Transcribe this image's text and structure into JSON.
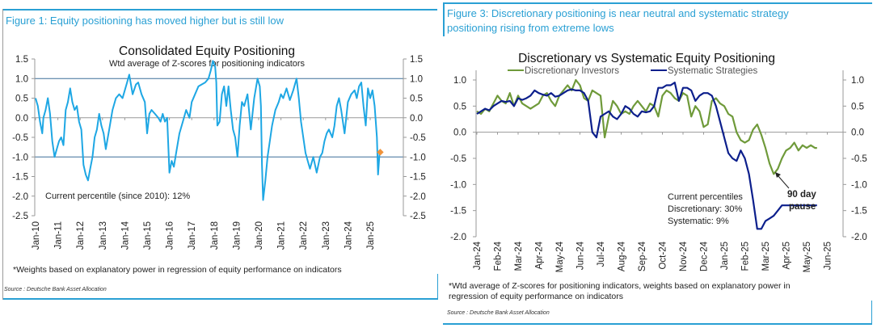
{
  "figure1": {
    "caption": "Figure 1: Equity positioning has moved higher but is still low",
    "footnote": "*Weights based on explanatory power in regression of equity performance on indicators",
    "source": "Source : Deutsche Bank Asset Allocation"
  },
  "figure3": {
    "caption_line1": "Figure 3: Discretionary positioning is near neutral and systematic strategy",
    "caption_line2": "positioning rising from extreme lows",
    "footnote_line1": "*Wtd average of Z-scores for positioning indicators, weights based on explanatory power in",
    "footnote_line2": "regression of equity performance on indicators",
    "source": "Source : Deutsche Bank Asset Allocation"
  },
  "chart_data": [
    {
      "type": "line",
      "title": "Consolidated Equity Positioning",
      "subtitle": "Wtd average of Z-scores for positioning indicators",
      "xlabel": "",
      "ylabel": "",
      "ylim": [
        -2.5,
        1.5
      ],
      "yticks": [
        "1.5",
        "1.0",
        "0.5",
        "0.0",
        "-0.5",
        "-1.0",
        "-1.5",
        "-2.0",
        "-2.5"
      ],
      "ytick_values": [
        1.5,
        1.0,
        0.5,
        0.0,
        -0.5,
        -1.0,
        -1.5,
        -2.0,
        -2.5
      ],
      "xticks": [
        "Jan-10",
        "Jan-11",
        "Jan-12",
        "Jan-13",
        "Jan-14",
        "Jan-15",
        "Jan-16",
        "Jan-17",
        "Jan-18",
        "Jan-19",
        "Jan-20",
        "Jan-21",
        "Jan-22",
        "Jan-23",
        "Jan-24",
        "Jan-25"
      ],
      "xlim": [
        2010.0,
        2025.8
      ],
      "reference_lines": [
        1.0,
        -1.0
      ],
      "annotation": "Current percentile (since 2010): 12%",
      "series": [
        {
          "name": "Consolidated Equity Positioning",
          "color": "#1ea7e4",
          "x": [
            2010.0,
            2010.1,
            2010.2,
            2010.3,
            2010.35,
            2010.45,
            2010.55,
            2010.65,
            2010.75,
            2010.85,
            2010.95,
            2011.05,
            2011.15,
            2011.25,
            2011.35,
            2011.45,
            2011.55,
            2011.65,
            2011.75,
            2011.85,
            2011.95,
            2012.05,
            2012.15,
            2012.25,
            2012.35,
            2012.45,
            2012.55,
            2012.65,
            2012.75,
            2012.85,
            2012.95,
            2013.05,
            2013.15,
            2013.3,
            2013.45,
            2013.6,
            2013.75,
            2013.9,
            2014.0,
            2014.1,
            2014.2,
            2014.35,
            2014.5,
            2014.6,
            2014.75,
            2014.9,
            2015.0,
            2015.1,
            2015.2,
            2015.35,
            2015.5,
            2015.6,
            2015.7,
            2015.8,
            2015.9,
            2016.0,
            2016.1,
            2016.2,
            2016.3,
            2016.45,
            2016.6,
            2016.75,
            2016.9,
            2017.0,
            2017.15,
            2017.3,
            2017.45,
            2017.6,
            2017.75,
            2017.85,
            2017.95,
            2018.05,
            2018.1,
            2018.15,
            2018.25,
            2018.35,
            2018.45,
            2018.55,
            2018.65,
            2018.75,
            2018.85,
            2018.95,
            2019.05,
            2019.15,
            2019.25,
            2019.35,
            2019.5,
            2019.65,
            2019.8,
            2019.95,
            2020.05,
            2020.1,
            2020.15,
            2020.2,
            2020.3,
            2020.4,
            2020.5,
            2020.6,
            2020.75,
            2020.9,
            2021.0,
            2021.1,
            2021.25,
            2021.4,
            2021.55,
            2021.7,
            2021.8,
            2021.9,
            2022.0,
            2022.1,
            2022.2,
            2022.3,
            2022.45,
            2022.6,
            2022.75,
            2022.85,
            2022.95,
            2023.05,
            2023.15,
            2023.3,
            2023.4,
            2023.5,
            2023.6,
            2023.7,
            2023.85,
            2024.0,
            2024.15,
            2024.3,
            2024.4,
            2024.5,
            2024.6,
            2024.7,
            2024.8,
            2024.9,
            2025.0,
            2025.1,
            2025.2,
            2025.3,
            2025.35,
            2025.42
          ],
          "y": [
            0.5,
            0.3,
            -0.1,
            -0.4,
            0.0,
            0.2,
            0.5,
            0.1,
            -0.6,
            -1.0,
            -0.8,
            -0.6,
            -0.5,
            -0.7,
            0.2,
            0.4,
            0.75,
            0.4,
            0.2,
            0.3,
            -0.1,
            -0.3,
            -1.2,
            -1.45,
            -1.6,
            -1.3,
            -1.0,
            -0.5,
            -0.3,
            0.1,
            -0.2,
            -0.4,
            -0.8,
            -0.3,
            0.2,
            0.5,
            0.6,
            0.5,
            0.7,
            0.9,
            1.1,
            0.6,
            0.85,
            0.9,
            0.6,
            0.4,
            -0.4,
            0.1,
            0.2,
            0.1,
            0.0,
            -0.1,
            0.1,
            -0.1,
            0.0,
            -1.4,
            -1.1,
            -1.25,
            -0.9,
            -0.4,
            -0.1,
            0.2,
            0.0,
            0.4,
            0.6,
            0.8,
            0.85,
            0.9,
            1.0,
            1.2,
            1.45,
            1.3,
            0.9,
            -0.2,
            -0.1,
            0.6,
            0.8,
            0.3,
            0.8,
            0.2,
            -0.3,
            -0.5,
            -1.0,
            -0.2,
            0.4,
            0.3,
            0.6,
            -0.3,
            0.5,
            1.0,
            0.8,
            0.3,
            -1.2,
            -2.1,
            -1.6,
            -1.0,
            -0.6,
            -0.2,
            0.2,
            0.4,
            0.6,
            0.5,
            0.75,
            0.45,
            0.7,
            1.0,
            0.5,
            -0.1,
            -0.5,
            -0.9,
            -1.1,
            -1.3,
            -1.0,
            -1.4,
            -1.0,
            -0.9,
            -0.6,
            -0.4,
            -0.3,
            -0.5,
            -0.2,
            0.3,
            0.5,
            0.2,
            -0.4,
            0.4,
            0.6,
            0.7,
            0.5,
            0.8,
            0.9,
            0.3,
            -0.2,
            0.75,
            0.5,
            0.7,
            0.3,
            -0.5,
            -1.45,
            -0.9
          ]
        }
      ],
      "marker": {
        "name": "current",
        "x": 2025.45,
        "y": -0.88,
        "color": "#f0923a"
      }
    },
    {
      "type": "line",
      "title": "Discretionary  vs Systematic Equity Positioning",
      "xlabel": "",
      "ylabel": "",
      "ylim": [
        -2.0,
        1.0
      ],
      "yticks": [
        "1.0",
        "0.5",
        "0.0",
        "-0.5",
        "-1.0",
        "-1.5",
        "-2.0"
      ],
      "ytick_values": [
        1.0,
        0.5,
        0.0,
        -0.5,
        -1.0,
        -1.5,
        -2.0
      ],
      "xticks": [
        "Jan-24",
        "Feb-24",
        "Mar-24",
        "Apr-24",
        "May-24",
        "Jun-24",
        "Jul-24",
        "Aug-24",
        "Sep-24",
        "Oct-24",
        "Nov-24",
        "Dec-24",
        "Jan-25",
        "Feb-25",
        "Mar-25",
        "Apr-25",
        "May-25",
        "Jun-25"
      ],
      "xlim": [
        0,
        17.8
      ],
      "legend": "top",
      "annotation": "Current percentiles\nDiscretionary: 30%\nSystematic: 9%",
      "annotation_lines": [
        "Current percentiles",
        "Discretionary: 30%",
        "Systematic: 9%"
      ],
      "arrow_label_lines": [
        "90 day",
        "pause"
      ],
      "series": [
        {
          "name": "Discretionary Investors",
          "color": "#6f9a3a",
          "x": [
            0,
            0.2,
            0.4,
            0.6,
            0.8,
            1.0,
            1.2,
            1.4,
            1.6,
            1.8,
            2.0,
            2.2,
            2.4,
            2.6,
            2.8,
            3.0,
            3.2,
            3.4,
            3.6,
            3.8,
            4.0,
            4.2,
            4.4,
            4.6,
            4.8,
            5.0,
            5.2,
            5.4,
            5.6,
            5.8,
            6.0,
            6.2,
            6.4,
            6.6,
            6.8,
            7.0,
            7.2,
            7.4,
            7.6,
            7.8,
            8.0,
            8.2,
            8.4,
            8.6,
            8.8,
            9.0,
            9.2,
            9.4,
            9.6,
            9.8,
            10.0,
            10.2,
            10.4,
            10.6,
            10.8,
            11.0,
            11.2,
            11.4,
            11.6,
            11.8,
            12.0,
            12.2,
            12.4,
            12.6,
            12.8,
            13.0,
            13.2,
            13.4,
            13.6,
            13.8,
            14.0,
            14.2,
            14.4,
            14.6,
            14.8,
            15.0,
            15.2,
            15.4,
            15.6,
            15.8,
            16.0,
            16.2,
            16.4,
            16.5
          ],
          "y": [
            0.4,
            0.35,
            0.45,
            0.4,
            0.55,
            0.7,
            0.6,
            0.55,
            0.75,
            0.5,
            0.7,
            0.55,
            0.5,
            0.45,
            0.5,
            0.55,
            0.7,
            0.75,
            0.6,
            0.5,
            0.7,
            0.8,
            0.9,
            0.8,
            1.0,
            0.9,
            0.65,
            0.6,
            0.8,
            0.75,
            0.7,
            -0.1,
            0.3,
            0.6,
            0.5,
            0.35,
            0.4,
            0.35,
            0.5,
            0.6,
            0.5,
            0.4,
            0.55,
            0.5,
            0.3,
            0.7,
            0.8,
            0.75,
            0.65,
            0.6,
            0.75,
            0.7,
            0.3,
            0.5,
            0.4,
            0.1,
            0.15,
            0.6,
            0.65,
            0.55,
            0.5,
            0.35,
            0.3,
            0.0,
            -0.15,
            -0.2,
            -0.15,
            0.05,
            0.15,
            -0.05,
            -0.3,
            -0.6,
            -0.8,
            -0.7,
            -0.5,
            -0.35,
            -0.3,
            -0.2,
            -0.35,
            -0.25,
            -0.3,
            -0.25,
            -0.3,
            -0.3
          ]
        },
        {
          "name": "Systematic Strategies",
          "color": "#0c1f8c",
          "x": [
            0,
            0.2,
            0.4,
            0.6,
            0.8,
            1.0,
            1.2,
            1.4,
            1.6,
            1.8,
            2.0,
            2.2,
            2.4,
            2.6,
            2.8,
            3.0,
            3.2,
            3.4,
            3.6,
            3.8,
            4.0,
            4.2,
            4.4,
            4.6,
            4.8,
            5.0,
            5.2,
            5.4,
            5.6,
            5.8,
            6.0,
            6.2,
            6.4,
            6.6,
            6.8,
            7.0,
            7.2,
            7.4,
            7.6,
            7.8,
            8.0,
            8.2,
            8.4,
            8.6,
            8.8,
            9.0,
            9.2,
            9.4,
            9.6,
            9.8,
            10.0,
            10.2,
            10.4,
            10.6,
            10.8,
            11.0,
            11.2,
            11.4,
            11.6,
            11.8,
            12.0,
            12.2,
            12.4,
            12.6,
            12.8,
            13.0,
            13.2,
            13.4,
            13.6,
            13.8,
            14.0,
            14.2,
            14.4,
            14.6,
            14.8,
            15.0,
            15.2,
            15.4,
            15.6,
            15.8,
            16.0,
            16.2,
            16.4,
            16.5
          ],
          "y": [
            0.35,
            0.4,
            0.45,
            0.42,
            0.5,
            0.55,
            0.6,
            0.58,
            0.6,
            0.5,
            0.65,
            0.62,
            0.65,
            0.7,
            0.8,
            0.75,
            0.72,
            0.7,
            0.75,
            0.68,
            0.7,
            0.75,
            0.8,
            0.82,
            0.8,
            0.8,
            0.75,
            0.6,
            0.0,
            -0.1,
            0.3,
            0.35,
            0.4,
            0.3,
            0.25,
            0.35,
            0.5,
            0.45,
            0.35,
            0.3,
            0.4,
            0.38,
            0.4,
            0.5,
            0.85,
            0.85,
            0.9,
            0.9,
            0.95,
            0.6,
            0.85,
            0.85,
            0.8,
            0.6,
            0.7,
            0.75,
            0.75,
            0.7,
            0.5,
            0.2,
            -0.1,
            -0.4,
            -0.5,
            -0.55,
            -0.35,
            -0.5,
            -0.8,
            -1.3,
            -1.85,
            -1.85,
            -1.7,
            -1.65,
            -1.6,
            -1.5,
            -1.4,
            -1.4,
            -1.4,
            -1.4,
            -1.4,
            -1.4,
            -1.4,
            -1.4,
            -1.4,
            -1.4
          ]
        }
      ]
    }
  ]
}
